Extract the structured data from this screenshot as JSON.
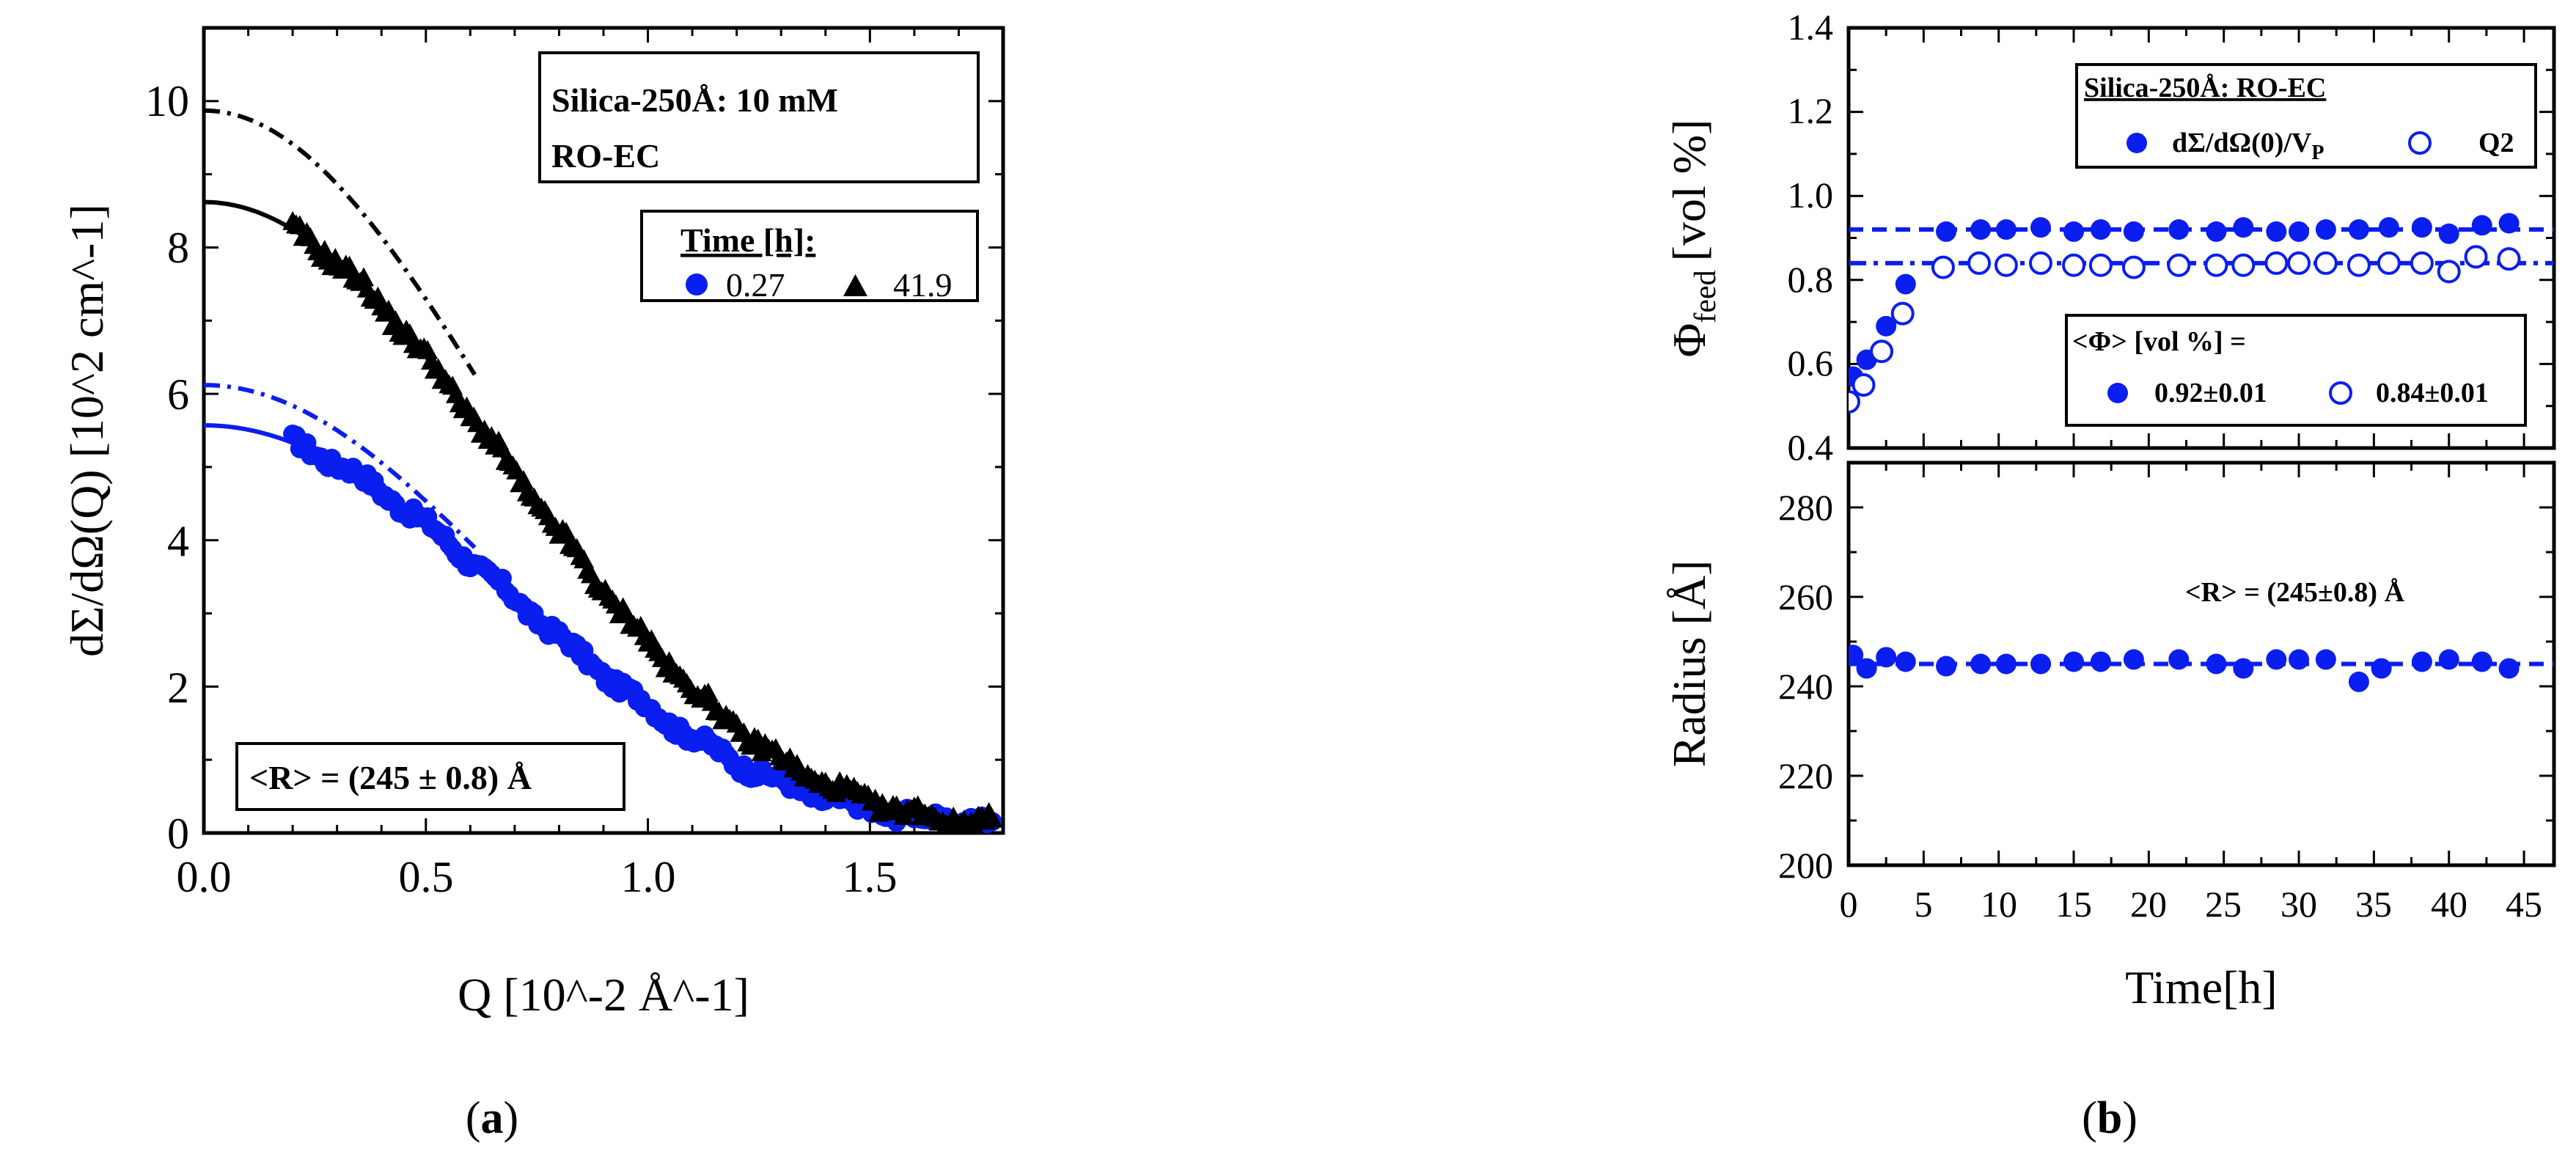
{
  "colors": {
    "blue": "#0a1ef0",
    "black": "#000000"
  },
  "chart_data": [
    {
      "id": "a",
      "type": "scatter",
      "panel_label": "a",
      "xlabel": "Q [10^-2 Å^-1]",
      "ylabel": "dΣ/dΩ(Q) [10^2 cm^-1]",
      "xlim": [
        0,
        1.8
      ],
      "ylim": [
        0,
        11
      ],
      "xticks": [
        "0.0",
        "0.5",
        "1.0",
        "1.5"
      ],
      "yticks": [
        "0",
        "2",
        "4",
        "6",
        "8",
        "10"
      ],
      "annotation_title": [
        "Silica-250Å: 10 mM",
        "RO-EC"
      ],
      "legend_title": "Time [h]:",
      "annotation_radius": "<R> = (245 ± 0.8) Å",
      "radius_A": 245,
      "series": [
        {
          "name": "0.27",
          "marker": "circle",
          "color": "#0a1ef0",
          "I0_data": 5.45,
          "Q_min": 0.2,
          "Q_max": 1.78,
          "fit": {
            "style": "solid",
            "I0": 5.45
          },
          "fit_extrap": {
            "style": "dash-dot",
            "I0": 6.0
          }
        },
        {
          "name": "41.9",
          "marker": "triangle",
          "color": "#000000",
          "I0_data": 8.5,
          "Q_min": 0.2,
          "Q_max": 1.78,
          "fit": {
            "style": "solid",
            "I0": 8.5
          },
          "fit_extrap": {
            "style": "dash-dot",
            "I0": 9.75
          }
        }
      ]
    },
    {
      "id": "b-top",
      "type": "scatter",
      "panel_label": "b",
      "ylabel_main": "Φ",
      "ylabel_sub": "feed",
      "ylabel_unit": "[vol %]",
      "xlim": [
        0,
        47
      ],
      "ylim": [
        0.4,
        1.4
      ],
      "yticks": [
        "0.4",
        "0.6",
        "0.8",
        "1.0",
        "1.2",
        "1.4"
      ],
      "legend_title": "Silica-250Å: RO-EC",
      "legend_series1": "dΣ/dΩ(0)/V",
      "legend_series1_sub": "P",
      "legend_series2": "Q2",
      "mean_title": "<Φ> [vol %] =",
      "mean_values": [
        "0.92±0.01",
        "0.84±0.01"
      ],
      "series": [
        {
          "name": "dΣ/dΩ(0)/VP",
          "marker": "filled-circle",
          "color": "#0a1ef0",
          "mean": 0.92,
          "mean_line": "dashed",
          "x": [
            0.3,
            1.2,
            2.5,
            3.8,
            6.5,
            8.8,
            10.5,
            12.8,
            15.0,
            16.8,
            19.0,
            22.0,
            24.5,
            26.3,
            28.5,
            30.0,
            31.8,
            34.0,
            36.0,
            38.2,
            40.0,
            42.2,
            44.0
          ],
          "y": [
            0.57,
            0.61,
            0.69,
            0.79,
            0.915,
            0.92,
            0.92,
            0.925,
            0.915,
            0.92,
            0.915,
            0.92,
            0.915,
            0.925,
            0.915,
            0.915,
            0.92,
            0.92,
            0.925,
            0.925,
            0.91,
            0.93,
            0.935
          ]
        },
        {
          "name": "Q2",
          "marker": "open-circle",
          "color": "#0a1ef0",
          "mean": 0.84,
          "mean_line": "dash-dot",
          "x": [
            0.0,
            1.0,
            2.2,
            3.6,
            6.3,
            8.7,
            10.5,
            12.8,
            15.0,
            16.8,
            19.0,
            22.0,
            24.5,
            26.3,
            28.5,
            30.0,
            31.8,
            34.0,
            36.0,
            38.2,
            40.0,
            41.8,
            44.0
          ],
          "y": [
            0.51,
            0.55,
            0.63,
            0.72,
            0.83,
            0.84,
            0.835,
            0.84,
            0.835,
            0.835,
            0.83,
            0.835,
            0.835,
            0.835,
            0.84,
            0.84,
            0.84,
            0.835,
            0.84,
            0.84,
            0.82,
            0.855,
            0.85
          ]
        }
      ]
    },
    {
      "id": "b-bottom",
      "type": "scatter",
      "xlabel": "Time[h]",
      "ylabel": "Radius [Å]",
      "xlim": [
        0,
        47
      ],
      "ylim": [
        200,
        290
      ],
      "xticks": [
        "0",
        "5",
        "10",
        "15",
        "20",
        "25",
        "30",
        "35",
        "40",
        "45"
      ],
      "yticks": [
        "200",
        "220",
        "240",
        "260",
        "280"
      ],
      "annotation": "<R> = (245±0.8) Å",
      "series": [
        {
          "name": "Radius",
          "marker": "filled-circle",
          "color": "#0a1ef0",
          "mean": 245,
          "mean_line": "dashed",
          "x": [
            0.3,
            1.2,
            2.5,
            3.8,
            6.5,
            8.8,
            10.5,
            12.8,
            15.0,
            16.8,
            19.0,
            22.0,
            24.5,
            26.3,
            28.5,
            30.0,
            31.8,
            34.0,
            35.5,
            38.2,
            40.0,
            42.2,
            44.0
          ],
          "y": [
            247,
            244,
            246.5,
            245.5,
            244.5,
            245,
            245,
            245,
            245.5,
            245.5,
            246,
            246,
            245,
            244,
            246,
            246,
            246,
            241,
            244,
            245.5,
            246,
            245.5,
            244
          ]
        }
      ]
    }
  ]
}
